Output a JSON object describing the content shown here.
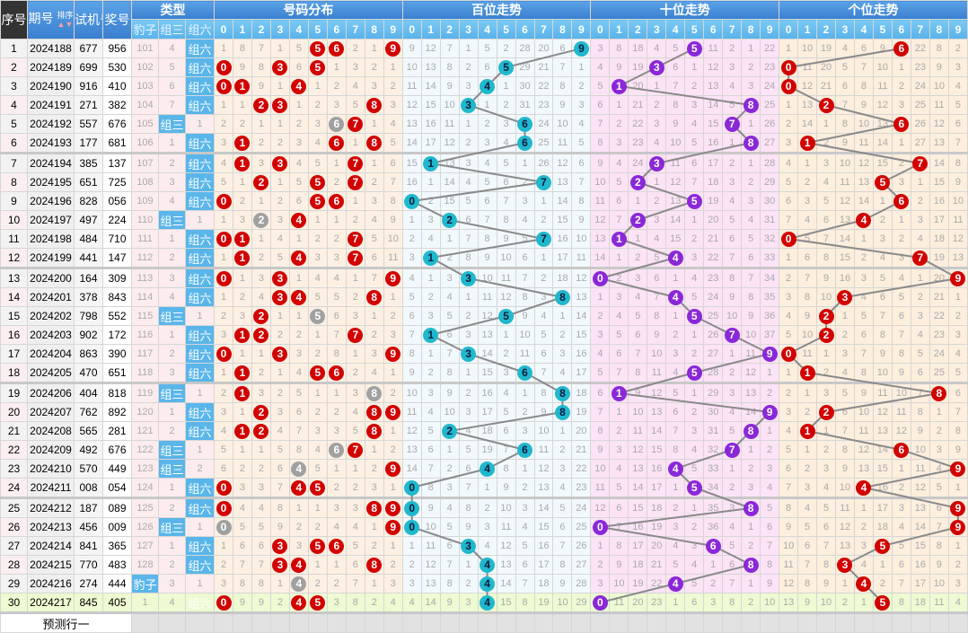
{
  "header": {
    "seq": "序号",
    "issue": "期号",
    "sort_label": "排序",
    "trial": "试机号",
    "draw": "奖号",
    "type_group": "类型",
    "type_cols": [
      "豹子",
      "组三",
      "组六"
    ],
    "dist_group": "号码分布",
    "hundreds_group": "百位走势",
    "tens_group": "十位走势",
    "units_group": "个位走势",
    "digits": [
      "0",
      "1",
      "2",
      "3",
      "4",
      "5",
      "6",
      "7",
      "8",
      "9"
    ]
  },
  "rows": [
    {
      "seq": "1",
      "issue": "2024188",
      "trial": "677",
      "draw": "956"
    },
    {
      "seq": "2",
      "issue": "2024189",
      "trial": "699",
      "draw": "530"
    },
    {
      "seq": "3",
      "issue": "2024190",
      "trial": "916",
      "draw": "410"
    },
    {
      "seq": "4",
      "issue": "2024191",
      "trial": "271",
      "draw": "382"
    },
    {
      "seq": "5",
      "issue": "2024192",
      "trial": "557",
      "draw": "676"
    },
    {
      "seq": "6",
      "issue": "2024193",
      "trial": "177",
      "draw": "681"
    },
    {
      "seq": "7",
      "issue": "2024194",
      "trial": "385",
      "draw": "137"
    },
    {
      "seq": "8",
      "issue": "2024195",
      "trial": "651",
      "draw": "725"
    },
    {
      "seq": "9",
      "issue": "2024196",
      "trial": "828",
      "draw": "056"
    },
    {
      "seq": "10",
      "issue": "2024197",
      "trial": "497",
      "draw": "224"
    },
    {
      "seq": "11",
      "issue": "2024198",
      "trial": "484",
      "draw": "710"
    },
    {
      "seq": "12",
      "issue": "2024199",
      "trial": "441",
      "draw": "147"
    },
    {
      "seq": "13",
      "issue": "2024200",
      "trial": "164",
      "draw": "309"
    },
    {
      "seq": "14",
      "issue": "2024201",
      "trial": "378",
      "draw": "843"
    },
    {
      "seq": "15",
      "issue": "2024202",
      "trial": "798",
      "draw": "552"
    },
    {
      "seq": "16",
      "issue": "2024203",
      "trial": "902",
      "draw": "172"
    },
    {
      "seq": "17",
      "issue": "2024204",
      "trial": "863",
      "draw": "390"
    },
    {
      "seq": "18",
      "issue": "2024205",
      "trial": "470",
      "draw": "651"
    },
    {
      "seq": "19",
      "issue": "2024206",
      "trial": "404",
      "draw": "818"
    },
    {
      "seq": "20",
      "issue": "2024207",
      "trial": "762",
      "draw": "892"
    },
    {
      "seq": "21",
      "issue": "2024208",
      "trial": "565",
      "draw": "281"
    },
    {
      "seq": "22",
      "issue": "2024209",
      "trial": "492",
      "draw": "676"
    },
    {
      "seq": "23",
      "issue": "2024210",
      "trial": "570",
      "draw": "449"
    },
    {
      "seq": "24",
      "issue": "2024211",
      "trial": "008",
      "draw": "054"
    },
    {
      "seq": "25",
      "issue": "2024212",
      "trial": "187",
      "draw": "089"
    },
    {
      "seq": "26",
      "issue": "2024213",
      "trial": "456",
      "draw": "009"
    },
    {
      "seq": "27",
      "issue": "2024214",
      "trial": "841",
      "draw": "365"
    },
    {
      "seq": "28",
      "issue": "2024215",
      "trial": "770",
      "draw": "483"
    },
    {
      "seq": "29",
      "issue": "2024216",
      "trial": "274",
      "draw": "444"
    },
    {
      "seq": "30",
      "issue": "2024217",
      "trial": "845",
      "draw": "405"
    }
  ],
  "first_row_miss": {
    "type": [
      101,
      4,
      null
    ],
    "dist": [
      1,
      8,
      7,
      1,
      5,
      null,
      null,
      2,
      1,
      null
    ],
    "hundreds": [
      9,
      12,
      7,
      1,
      5,
      2,
      28,
      20,
      6,
      null
    ],
    "tens": [
      3,
      8,
      18,
      4,
      5,
      null,
      11,
      2,
      1,
      22
    ],
    "units": [
      1,
      10,
      19,
      4,
      6,
      9,
      null,
      22,
      8,
      2
    ]
  },
  "footer": {
    "predict_label": "预测行一"
  },
  "colors": {
    "header": "#3a7fcf",
    "dist_ball": "#d20000",
    "repeat_ball": "#a0a0a0",
    "hundreds_ball": "#20b8cc",
    "tens_ball": "#8a28d8",
    "units_ball": "#d20000",
    "type_hit": "#5ab6ea",
    "latest_row": "#eefad2"
  }
}
